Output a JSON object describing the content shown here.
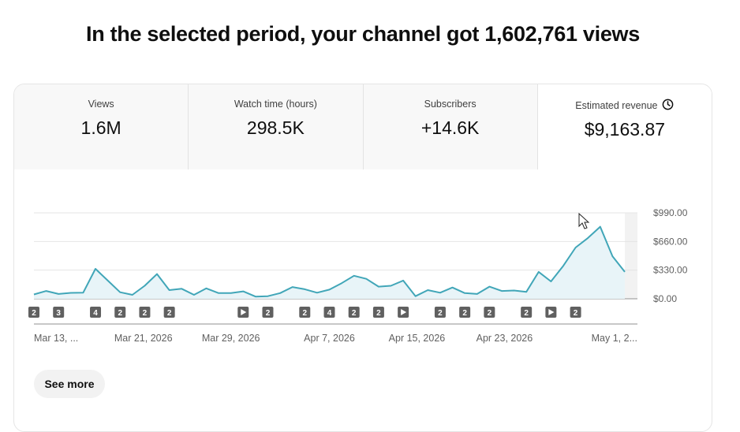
{
  "headline": "In the selected period, your channel got 1,602,761 views",
  "tabs": [
    {
      "label": "Views",
      "value": "1.6M",
      "selected": false
    },
    {
      "label": "Watch time (hours)",
      "value": "298.5K",
      "selected": false
    },
    {
      "label": "Subscribers",
      "value": "+14.6K",
      "selected": false
    },
    {
      "label": "Estimated revenue",
      "value": "$9,163.87",
      "selected": true,
      "icon": "clock-icon"
    }
  ],
  "see_more_label": "See more",
  "colors": {
    "line": "#41a6b8",
    "fill": "#e8f4f8",
    "marker": "#606060",
    "grid": "#e5e5e5"
  },
  "chart_data": {
    "type": "area",
    "x_start": "2026-03-11",
    "x_end": "2026-05-04",
    "y_ticks": [
      "$0.00",
      "$330.00",
      "$660.00",
      "$990.00"
    ],
    "ylim": [
      0,
      990
    ],
    "grid": true,
    "x_ticks": [
      {
        "label": "Mar 13, ...",
        "date": "2026-03-13"
      },
      {
        "label": "Mar 21, 2026",
        "date": "2026-03-21"
      },
      {
        "label": "Mar 29, 2026",
        "date": "2026-03-29"
      },
      {
        "label": "Apr 7, 2026",
        "date": "2026-04-07"
      },
      {
        "label": "Apr 15, 2026",
        "date": "2026-04-15"
      },
      {
        "label": "Apr 23, 2026",
        "date": "2026-04-23"
      },
      {
        "label": "May 1, 2...",
        "date": "2026-05-01"
      }
    ],
    "values": [
      50,
      90,
      55,
      68,
      70,
      345,
      210,
      75,
      45,
      150,
      285,
      100,
      115,
      45,
      120,
      65,
      65,
      85,
      25,
      30,
      65,
      135,
      110,
      70,
      105,
      180,
      265,
      230,
      140,
      150,
      210,
      30,
      100,
      70,
      130,
      65,
      55,
      140,
      90,
      95,
      80,
      310,
      200,
      380,
      590,
      700,
      830,
      490,
      310
    ],
    "markers": [
      {
        "index": 0,
        "label": "2"
      },
      {
        "index": 2,
        "label": "3"
      },
      {
        "index": 5,
        "label": "4"
      },
      {
        "index": 7,
        "label": "2"
      },
      {
        "index": 9,
        "label": "2"
      },
      {
        "index": 11,
        "label": "2"
      },
      {
        "index": 17,
        "label": "play"
      },
      {
        "index": 19,
        "label": "2"
      },
      {
        "index": 22,
        "label": "2"
      },
      {
        "index": 24,
        "label": "4"
      },
      {
        "index": 26,
        "label": "2"
      },
      {
        "index": 28,
        "label": "2"
      },
      {
        "index": 30,
        "label": "play"
      },
      {
        "index": 33,
        "label": "2"
      },
      {
        "index": 35,
        "label": "2"
      },
      {
        "index": 37,
        "label": "2"
      },
      {
        "index": 40,
        "label": "2"
      },
      {
        "index": 42,
        "label": "play"
      },
      {
        "index": 44,
        "label": "2"
      }
    ]
  }
}
